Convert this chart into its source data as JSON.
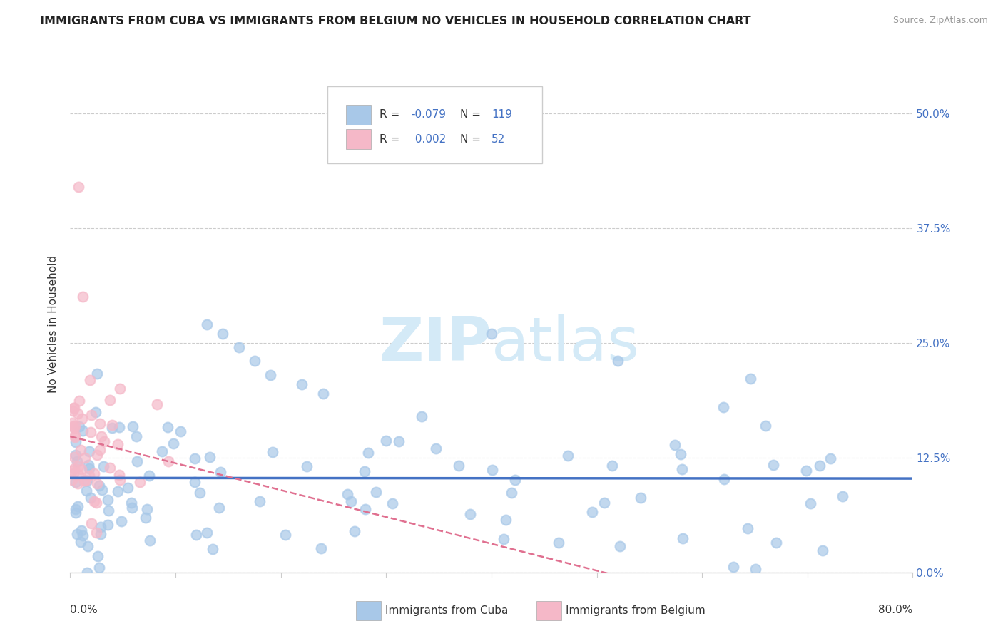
{
  "title": "IMMIGRANTS FROM CUBA VS IMMIGRANTS FROM BELGIUM NO VEHICLES IN HOUSEHOLD CORRELATION CHART",
  "source_text": "Source: ZipAtlas.com",
  "ylabel": "No Vehicles in Household",
  "ytick_vals": [
    0.0,
    12.5,
    25.0,
    37.5,
    50.0
  ],
  "xlim": [
    0.0,
    80.0
  ],
  "ylim": [
    0.0,
    54.0
  ],
  "legend_r_cuba": "-0.079",
  "legend_n_cuba": "119",
  "legend_r_belgium": " 0.002",
  "legend_n_belgium": "52",
  "cuba_color": "#a8c8e8",
  "belgium_color": "#f5b8c8",
  "cuba_line_color": "#4472c4",
  "belgium_line_color": "#e07090",
  "watermark_color": "#d4eaf7",
  "title_color": "#222222",
  "axis_label_color": "#4472c4",
  "text_color": "#333333",
  "grid_color": "#cccccc"
}
